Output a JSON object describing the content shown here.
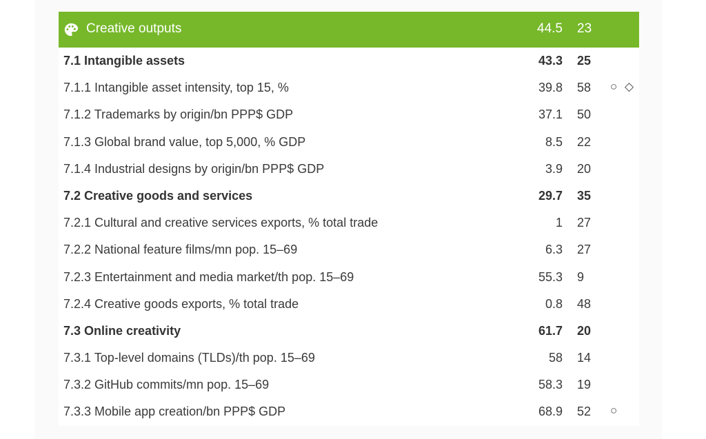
{
  "header": {
    "icon": "palette-icon",
    "title": "Creative outputs",
    "score": "44.5",
    "rank": "23",
    "color": "#76b82a"
  },
  "rows": [
    {
      "label": "7.1 Intangible assets",
      "score": "43.3",
      "rank": "25",
      "bold": true,
      "flags": ""
    },
    {
      "label": "7.1.1 Intangible asset intensity, top 15, %",
      "score": "39.8",
      "rank": "58",
      "bold": false,
      "flags": "○ ◇"
    },
    {
      "label": "7.1.2 Trademarks by origin/bn PPP$ GDP",
      "score": "37.1",
      "rank": "50",
      "bold": false,
      "flags": ""
    },
    {
      "label": "7.1.3 Global brand value, top 5,000, % GDP",
      "score": "8.5",
      "rank": "22",
      "bold": false,
      "flags": ""
    },
    {
      "label": "7.1.4 Industrial designs by origin/bn PPP$ GDP",
      "score": "3.9",
      "rank": "20",
      "bold": false,
      "flags": ""
    },
    {
      "label": "7.2 Creative goods and services",
      "score": "29.7",
      "rank": "35",
      "bold": true,
      "flags": ""
    },
    {
      "label": "7.2.1 Cultural and creative services exports, % total trade",
      "score": "1",
      "rank": "27",
      "bold": false,
      "flags": ""
    },
    {
      "label": "7.2.2 National feature films/mn pop. 15–69",
      "score": "6.3",
      "rank": "27",
      "bold": false,
      "flags": ""
    },
    {
      "label": "7.2.3 Entertainment and media market/th pop. 15–69",
      "score": "55.3",
      "rank": "9",
      "bold": false,
      "flags": ""
    },
    {
      "label": "7.2.4 Creative goods exports, % total trade",
      "score": "0.8",
      "rank": "48",
      "bold": false,
      "flags": ""
    },
    {
      "label": "7.3 Online creativity",
      "score": "61.7",
      "rank": "20",
      "bold": true,
      "flags": ""
    },
    {
      "label": "7.3.1 Top-level domains (TLDs)/th pop. 15–69",
      "score": "58",
      "rank": "14",
      "bold": false,
      "flags": ""
    },
    {
      "label": "7.3.2 GitHub commits/mn pop. 15–69",
      "score": "58.3",
      "rank": "19",
      "bold": false,
      "flags": ""
    },
    {
      "label": "7.3.3 Mobile app creation/bn PPP$ GDP",
      "score": "68.9",
      "rank": "52",
      "bold": false,
      "flags": "○"
    }
  ]
}
